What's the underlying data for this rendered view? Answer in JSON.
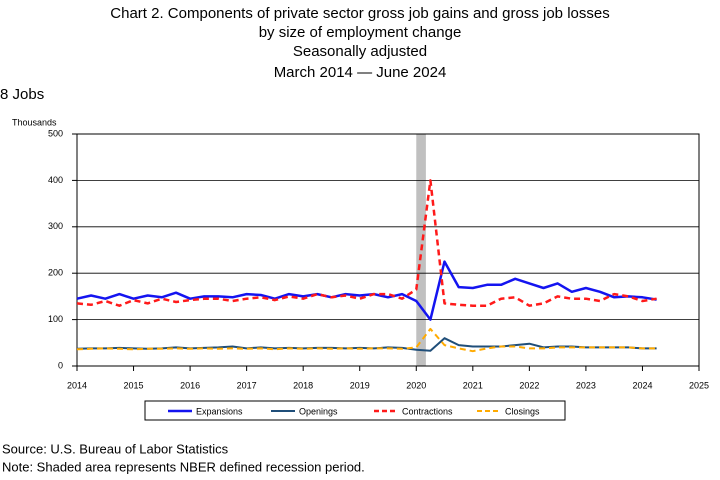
{
  "chart_data": {
    "type": "line",
    "title": "Chart 2. Components of private sector gross job gains and gross job losses",
    "subtitles": [
      "by size of employment change",
      "Seasonally adjusted",
      "March 2014 — June 2024"
    ],
    "panel_label": "8 Jobs",
    "y_label": "Thousands",
    "source": "Source: U.S. Bureau of Labor Statistics",
    "note": "Note: Shaded area represents NBER defined recession period.",
    "x": [
      2014,
      2014.25,
      2014.5,
      2014.75,
      2015,
      2015.25,
      2015.5,
      2015.75,
      2016,
      2016.25,
      2016.5,
      2016.75,
      2017,
      2017.25,
      2017.5,
      2017.75,
      2018,
      2018.25,
      2018.5,
      2018.75,
      2019,
      2019.25,
      2019.5,
      2019.75,
      2020,
      2020.25,
      2020.5,
      2020.75,
      2021,
      2021.25,
      2021.5,
      2021.75,
      2022,
      2022.25,
      2022.5,
      2022.75,
      2023,
      2023.25,
      2023.5,
      2023.75,
      2024,
      2024.25
    ],
    "series": [
      {
        "name": "Expansions",
        "color": "#1414f0",
        "dash": false,
        "width": 2.5,
        "values": [
          145,
          152,
          145,
          155,
          145,
          152,
          148,
          158,
          145,
          150,
          150,
          148,
          155,
          153,
          145,
          155,
          150,
          155,
          148,
          155,
          152,
          155,
          148,
          155,
          140,
          100,
          225,
          170,
          168,
          175,
          175,
          188,
          178,
          168,
          178,
          160,
          168,
          160,
          148,
          150,
          148,
          143
        ]
      },
      {
        "name": "Openings",
        "color": "#1f4e79",
        "dash": false,
        "width": 2,
        "values": [
          37,
          38,
          38,
          39,
          38,
          37,
          38,
          40,
          38,
          39,
          40,
          42,
          38,
          40,
          38,
          39,
          38,
          39,
          39,
          38,
          39,
          38,
          40,
          39,
          35,
          33,
          60,
          45,
          42,
          42,
          42,
          45,
          48,
          40,
          42,
          42,
          40,
          40,
          40,
          40,
          38,
          38
        ]
      },
      {
        "name": "Contractions",
        "color": "#ff1a1a",
        "dash": true,
        "width": 2.5,
        "values": [
          135,
          132,
          140,
          130,
          142,
          135,
          145,
          138,
          142,
          145,
          145,
          140,
          145,
          148,
          142,
          150,
          145,
          155,
          148,
          152,
          145,
          155,
          155,
          145,
          165,
          400,
          135,
          132,
          130,
          130,
          145,
          148,
          130,
          135,
          150,
          145,
          145,
          140,
          155,
          150,
          140,
          145
        ]
      },
      {
        "name": "Closings",
        "color": "#ffaa00",
        "dash": true,
        "width": 2,
        "values": [
          36,
          37,
          38,
          37,
          36,
          37,
          37,
          38,
          37,
          38,
          37,
          38,
          37,
          38,
          36,
          38,
          37,
          38,
          37,
          38,
          37,
          38,
          38,
          37,
          40,
          80,
          45,
          38,
          32,
          38,
          42,
          42,
          38,
          38,
          40,
          40,
          40,
          40,
          40,
          40,
          38,
          38
        ]
      }
    ],
    "recession": [
      2020,
      2020.17
    ],
    "xlim": [
      2014,
      2025
    ],
    "xticks": [
      2014,
      2015,
      2016,
      2017,
      2018,
      2019,
      2020,
      2021,
      2022,
      2023,
      2024,
      2025
    ],
    "ylim": [
      0,
      500
    ],
    "yticks": [
      0,
      100,
      200,
      300,
      400,
      500
    ],
    "grid": true
  }
}
